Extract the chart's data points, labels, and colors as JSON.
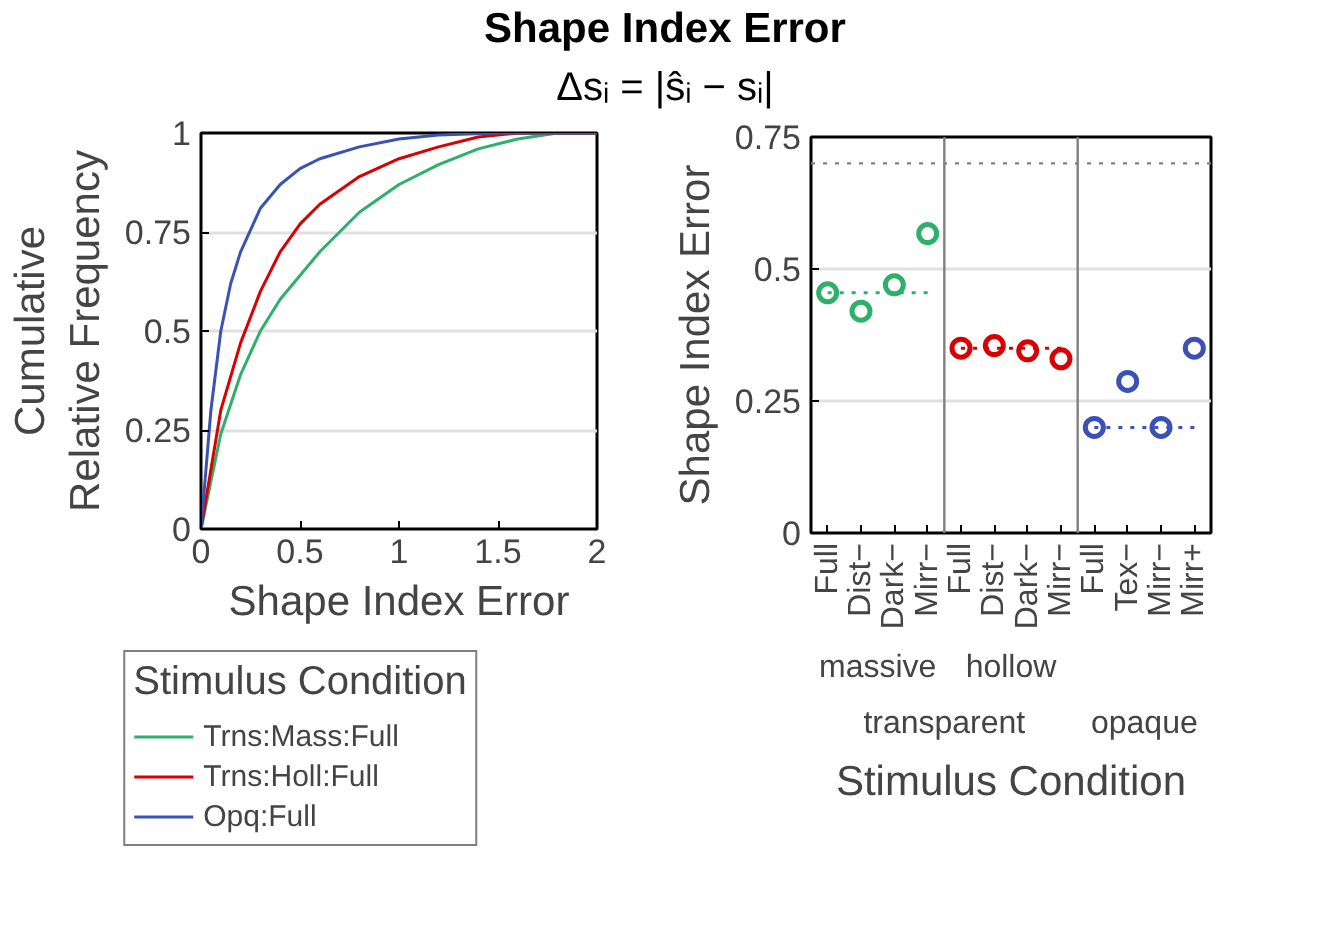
{
  "chart_data": [
    {
      "type": "line",
      "title": "Shape Index Error",
      "subtitle": "Δsᵢ = |ŝᵢ − sᵢ|",
      "xlabel": "Shape Index Error",
      "ylabel": "Cumulative\nRelative Frequency",
      "legend_title": "Stimulus Condition",
      "legend": "bottom",
      "grid": "y",
      "xlim": [
        0,
        2
      ],
      "ylim": [
        0,
        1
      ],
      "xticks": [
        0,
        0.5,
        1,
        1.5,
        2
      ],
      "yticks": [
        0,
        0.25,
        0.5,
        0.75,
        1
      ],
      "series": [
        {
          "name": "Trns:Mass:Full",
          "color": "#2eb06b",
          "x": [
            0,
            0.1,
            0.2,
            0.3,
            0.4,
            0.5,
            0.6,
            0.8,
            1.0,
            1.2,
            1.4,
            1.6,
            1.8,
            2
          ],
          "values": [
            0,
            0.24,
            0.39,
            0.5,
            0.58,
            0.64,
            0.7,
            0.8,
            0.87,
            0.92,
            0.96,
            0.985,
            1.0,
            1.0
          ]
        },
        {
          "name": "Trns:Holl:Full",
          "color": "#d80000",
          "x": [
            0,
            0.1,
            0.2,
            0.3,
            0.4,
            0.5,
            0.6,
            0.8,
            1.0,
            1.2,
            1.4,
            1.6,
            2
          ],
          "values": [
            0,
            0.3,
            0.47,
            0.6,
            0.7,
            0.77,
            0.82,
            0.89,
            0.935,
            0.965,
            0.99,
            1.0,
            1.0
          ]
        },
        {
          "name": "Opq:Full",
          "color": "#3a52b5",
          "x": [
            0,
            0.05,
            0.1,
            0.15,
            0.2,
            0.3,
            0.4,
            0.5,
            0.6,
            0.8,
            1.0,
            1.2,
            1.5,
            2
          ],
          "values": [
            0,
            0.3,
            0.5,
            0.62,
            0.7,
            0.81,
            0.87,
            0.91,
            0.935,
            0.965,
            0.985,
            0.995,
            1.0,
            1.0
          ]
        }
      ]
    },
    {
      "type": "scatter",
      "xlabel": "Stimulus Condition",
      "ylabel": "Shape Index Error",
      "grid": "y",
      "categories": [
        "Full",
        "Dist−",
        "Dark−",
        "Mirr−",
        "Full",
        "Dist−",
        "Dark−",
        "Mirr−",
        "Full",
        "Tex−",
        "Mirr−",
        "Mirr+"
      ],
      "ylim": [
        0,
        0.75
      ],
      "yticks": [
        0,
        0.25,
        0.5,
        0.75
      ],
      "annotations": [
        "massive",
        "hollow",
        "transparent",
        "opaque"
      ],
      "ref_lines": [
        {
          "axis": "y",
          "value": 0.7,
          "color": "#808080",
          "line_style": "dotted"
        }
      ],
      "series": [
        {
          "marker": "circle",
          "color": "#2eb06b",
          "values": [
            0.455,
            0.42,
            0.47,
            0.567,
            null,
            null,
            null,
            null,
            null,
            null,
            null,
            null
          ],
          "errors": [
            0.012,
            0.012,
            0.012,
            0.012,
            null,
            null,
            null,
            null,
            null,
            null,
            null,
            null
          ]
        },
        {
          "marker": "circle",
          "color": "#d80000",
          "values": [
            null,
            null,
            null,
            null,
            0.35,
            0.355,
            0.345,
            0.33,
            null,
            null,
            null,
            null
          ],
          "errors": [
            null,
            null,
            null,
            null,
            0.012,
            0.012,
            0.012,
            0.012,
            null,
            null,
            null,
            null
          ]
        },
        {
          "marker": "circle",
          "color": "#3a52b5",
          "values": [
            null,
            null,
            null,
            null,
            null,
            null,
            null,
            null,
            0.2,
            0.287,
            0.2,
            0.35
          ],
          "errors": [
            null,
            null,
            null,
            null,
            null,
            null,
            null,
            null,
            0.01,
            0.012,
            0.01,
            0.012
          ]
        },
        {
          "type": "line",
          "line_style": "dotted",
          "color": "#2eb06b",
          "values": [
            0.455,
            0.455,
            0.455,
            0.455,
            null,
            null,
            null,
            null,
            null,
            null,
            null,
            null
          ]
        },
        {
          "type": "line",
          "line_style": "dotted",
          "color": "#d80000",
          "values": [
            null,
            null,
            null,
            null,
            0.35,
            0.35,
            0.35,
            0.35,
            null,
            null,
            null,
            null
          ]
        },
        {
          "type": "line",
          "line_style": "dotted",
          "color": "#3a52b5",
          "values": [
            null,
            null,
            null,
            null,
            null,
            null,
            null,
            null,
            0.2,
            0.2,
            0.2,
            0.2
          ]
        }
      ]
    }
  ]
}
